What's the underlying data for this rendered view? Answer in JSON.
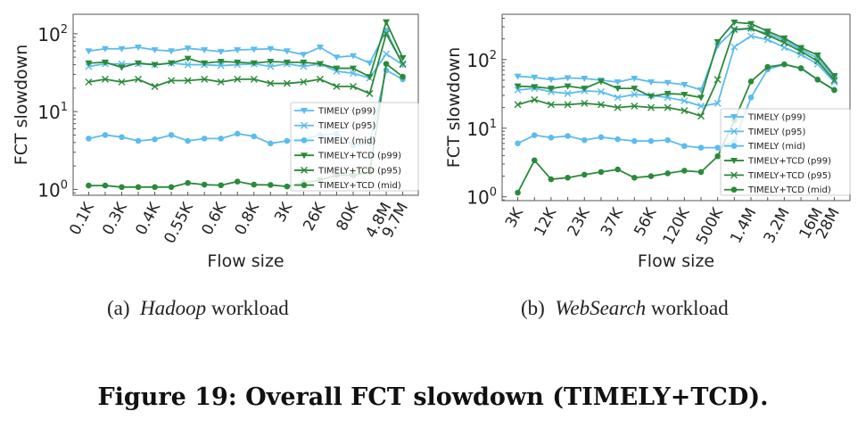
{
  "colors": {
    "timely": "#5bbcee",
    "tcd": "#2b8a3a"
  },
  "legend_labels": [
    "TIMELY (p99)",
    "TIMELY (p95)",
    "TIMELY (mid)",
    "TIMELY+TCD (p99)",
    "TIMELY+TCD (p95)",
    "TIMELY+TCD (mid)"
  ],
  "captions": {
    "a_prefix": "(a)",
    "a_name": "Hadoop",
    "a_suffix": "workload",
    "b_prefix": "(b)",
    "b_name": "WebSearch",
    "b_suffix": "workload",
    "figure": "Figure 19: Overall FCT slowdown (TIMELY+TCD)."
  },
  "chart_data": [
    {
      "type": "line",
      "xlabel": "Flow size",
      "ylabel": "FCT slowdown",
      "yscale": "log",
      "ylim": [
        0.84,
        178
      ],
      "yticks": [
        "10^0",
        "10^1",
        "10^2"
      ],
      "xtick_labels": [
        "0.1K",
        "0.3K",
        "0.4K",
        "0.55K",
        "0.6K",
        "0.8K",
        "3K",
        "26K",
        "80K",
        "4.8M",
        "9.7M"
      ],
      "xtick_indices": [
        0,
        2,
        4,
        6,
        8,
        10,
        12,
        14,
        16,
        18,
        19
      ],
      "legend_position": "lower-right",
      "series": [
        {
          "name": "TIMELY (p99)",
          "marker": "triangle-down",
          "group": "timely",
          "values": [
            60,
            64,
            64,
            67,
            62,
            60,
            65,
            62,
            59,
            62,
            63,
            64,
            60,
            54,
            67,
            50,
            52,
            42,
            110,
            40
          ]
        },
        {
          "name": "TIMELY (p95)",
          "marker": "x",
          "group": "timely",
          "values": [
            38,
            41,
            41,
            41,
            40,
            42,
            40,
            40,
            39,
            40,
            41,
            38,
            41,
            38,
            41,
            33,
            31,
            27,
            55,
            40
          ]
        },
        {
          "name": "TIMELY (mid)",
          "marker": "circle",
          "group": "timely",
          "values": [
            4.5,
            5.0,
            4.7,
            4.2,
            4.4,
            5.0,
            4.2,
            4.5,
            4.5,
            5.2,
            4.8,
            3.9,
            4.2,
            4.4,
            5.0,
            5.2,
            3.7,
            3.9,
            34,
            26
          ]
        },
        {
          "name": "TIMELY+TCD (p99)",
          "marker": "triangle-down",
          "group": "tcd",
          "values": [
            42,
            43,
            37,
            42,
            40,
            42,
            48,
            42,
            44,
            43,
            42,
            44,
            43,
            43,
            41,
            36,
            36,
            28,
            142,
            49
          ]
        },
        {
          "name": "TIMELY+TCD (p95)",
          "marker": "x",
          "group": "tcd",
          "values": [
            24,
            26,
            24,
            26,
            21,
            25,
            25,
            26,
            24,
            26,
            26,
            23,
            23,
            24,
            26,
            21,
            21,
            17,
            100,
            41
          ]
        },
        {
          "name": "TIMELY+TCD (mid)",
          "marker": "circle",
          "group": "tcd",
          "values": [
            1.12,
            1.12,
            1.07,
            1.07,
            1.07,
            1.07,
            1.21,
            1.15,
            1.13,
            1.26,
            1.15,
            1.14,
            1.09,
            1.22,
            1.32,
            1.52,
            1.52,
            1.66,
            41,
            28
          ]
        }
      ]
    },
    {
      "type": "line",
      "xlabel": "Flow size",
      "ylabel": "FCT slowdown",
      "yscale": "log",
      "ylim": [
        0.88,
        457
      ],
      "yticks": [
        "10^0",
        "10^1",
        "10^2"
      ],
      "xtick_labels": [
        "3K",
        "12K",
        "23K",
        "37K",
        "56K",
        "120K",
        "500K",
        "1.4M",
        "3.2M",
        "16M",
        "28M"
      ],
      "xtick_indices": [
        0,
        2,
        4,
        6,
        8,
        10,
        12,
        14,
        16,
        18,
        19
      ],
      "legend_position": "lower-right",
      "series": [
        {
          "name": "TIMELY (p99)",
          "marker": "triangle-down",
          "group": "timely",
          "values": [
            57,
            55,
            51,
            54,
            53,
            50,
            47,
            53,
            47,
            46,
            43,
            36,
            160,
            270,
            280,
            240,
            190,
            140,
            105,
            55
          ]
        },
        {
          "name": "TIMELY (p95)",
          "marker": "x",
          "group": "timely",
          "values": [
            36,
            38,
            34,
            32,
            35,
            34,
            28,
            31,
            30,
            28,
            25,
            21,
            23,
            153,
            220,
            195,
            150,
            118,
            86,
            47
          ]
        },
        {
          "name": "TIMELY (mid)",
          "marker": "circle",
          "group": "timely",
          "values": [
            6.0,
            7.9,
            7.3,
            7.7,
            6.7,
            7.4,
            6.9,
            6.5,
            6.5,
            6.7,
            5.5,
            5.2,
            5.2,
            6.4,
            28,
            72,
            85,
            74,
            51,
            36
          ]
        },
        {
          "name": "TIMELY+TCD (p99)",
          "marker": "triangle-down",
          "group": "tcd",
          "values": [
            41,
            40,
            38,
            41,
            38,
            48,
            38,
            38,
            29,
            32,
            31,
            28,
            181,
            349,
            333,
            258,
            205,
            149,
            116,
            58
          ]
        },
        {
          "name": "TIMELY+TCD (p95)",
          "marker": "x",
          "group": "tcd",
          "values": [
            22,
            26,
            22,
            22,
            23,
            22,
            20,
            21,
            20,
            20,
            18,
            15,
            51,
            275,
            285,
            227,
            176,
            131,
            95,
            50
          ]
        },
        {
          "name": "TIMELY+TCD (mid)",
          "marker": "circle",
          "group": "tcd",
          "values": [
            1.15,
            3.4,
            1.8,
            1.9,
            2.1,
            2.3,
            2.5,
            1.9,
            2.0,
            2.2,
            2.4,
            2.3,
            3.9,
            13,
            48,
            78,
            85,
            75,
            51,
            36
          ]
        }
      ]
    }
  ]
}
